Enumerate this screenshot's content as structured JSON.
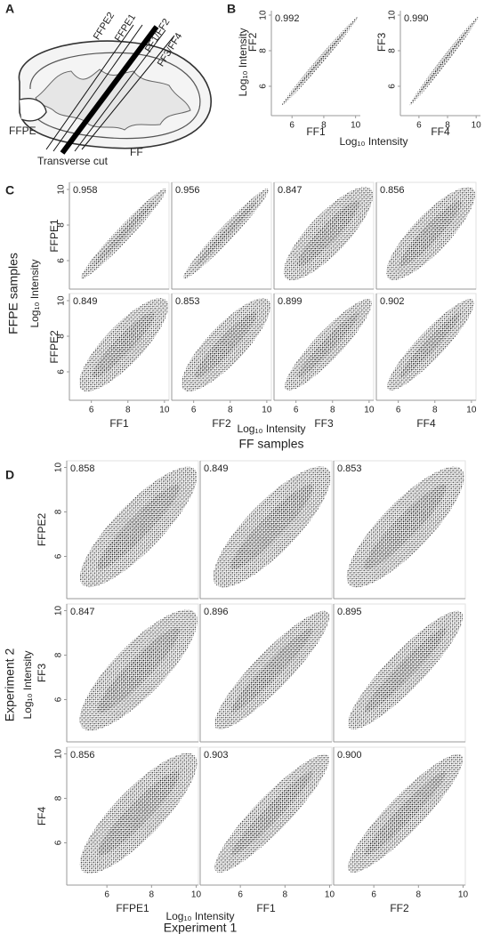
{
  "panel_a": {
    "label": "A",
    "slice_labels": [
      "FFPE2",
      "FFPE1",
      "FF1/FF2",
      "FF3/FF4"
    ],
    "ffpe": "FFPE",
    "ff": "FF",
    "cut": "Transverse cut"
  },
  "chart_data": [
    {
      "type": "scatter",
      "panel_label": "B",
      "x_title": "Log₁₀ Intensity",
      "y_title": "Log₁₀ Intensity",
      "xlim": [
        4.7,
        10.3
      ],
      "ylim": [
        4.35,
        10.25
      ],
      "xticks": [
        6,
        8,
        10
      ],
      "yticks": [
        6,
        8,
        10
      ],
      "panels": [
        {
          "x": "FF1",
          "y": "FF2",
          "r": 0.992,
          "value_label": "0.992"
        },
        {
          "x": "FF4",
          "y": "FF3",
          "r": 0.99,
          "value_label": "0.990"
        }
      ]
    },
    {
      "type": "scatter",
      "panel_label": "C",
      "x_title": "Log₁₀ Intensity",
      "x_group": "FF samples",
      "y_title": "Log₁₀ Intensity",
      "y_group": "FFPE samples",
      "xlim": [
        4.8,
        10.25
      ],
      "ylim": [
        4.4,
        10.4
      ],
      "xticks": [
        6,
        8,
        10
      ],
      "yticks": [
        6,
        8,
        10
      ],
      "rows": [
        "FFPE1",
        "FFPE2"
      ],
      "cols": [
        "FF1",
        "FF2",
        "FF3",
        "FF4"
      ],
      "r": [
        [
          0.958,
          0.956,
          0.847,
          0.856
        ],
        [
          0.849,
          0.853,
          0.899,
          0.902
        ]
      ]
    },
    {
      "type": "scatter",
      "panel_label": "D",
      "x_title": "Log₁₀ Intensity",
      "x_group": "Experiment 1",
      "y_title": "Log₁₀ Intensity",
      "y_group": "Experiment 2",
      "xlim": [
        4.2,
        10.1
      ],
      "ylim": [
        4.1,
        10.3
      ],
      "xticks": [
        6,
        8,
        10
      ],
      "yticks": [
        6,
        8,
        10
      ],
      "rows": [
        "FFPE2",
        "FF3",
        "FF4"
      ],
      "cols": [
        "FFPE1",
        "FF1",
        "FF2"
      ],
      "r": [
        [
          0.858,
          0.849,
          0.853
        ],
        [
          0.847,
          0.896,
          0.895
        ],
        [
          0.856,
          0.903,
          0.9
        ]
      ],
      "value_labels": [
        [
          "0.858",
          "0.849",
          "0.853"
        ],
        [
          "0.847",
          "0.896",
          "0.895"
        ],
        [
          "0.856",
          "0.903",
          "0.900"
        ]
      ]
    }
  ]
}
